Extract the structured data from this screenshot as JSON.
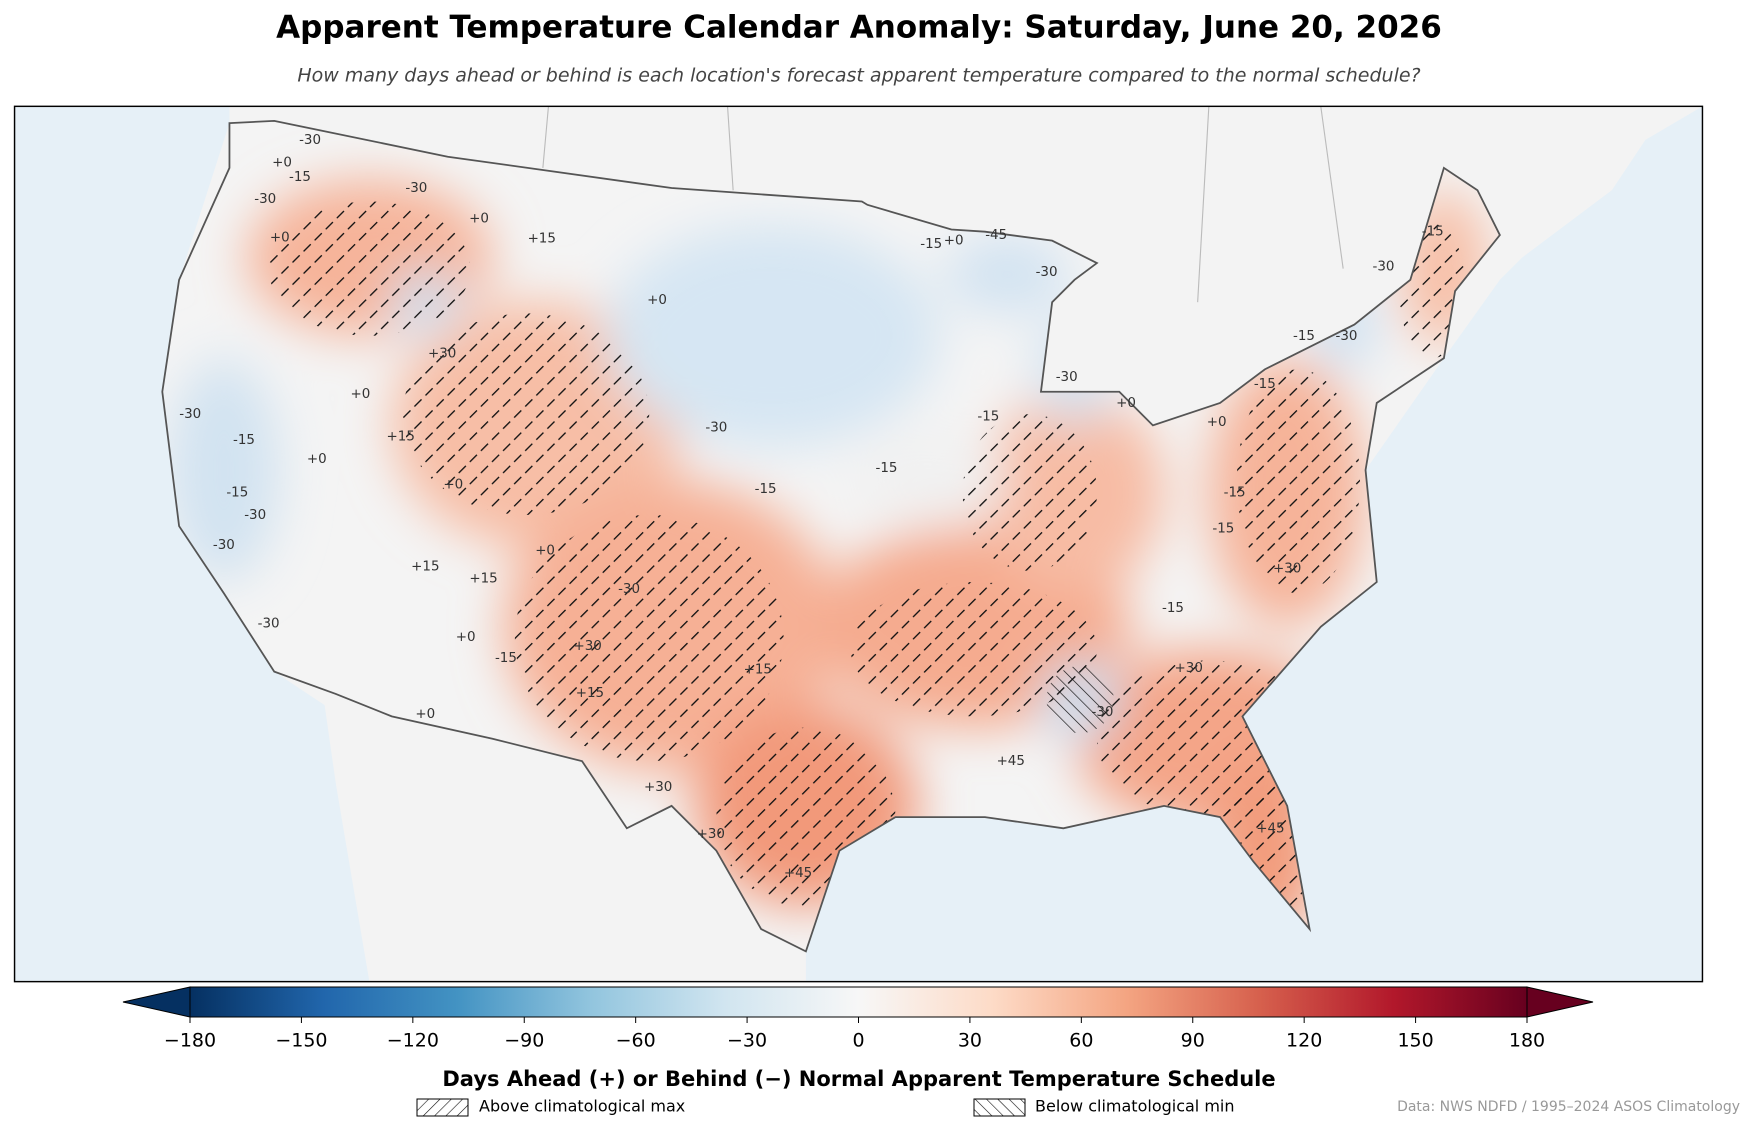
{
  "chart_data": {
    "type": "map",
    "title": "Apparent Temperature Calendar Anomaly: Saturday, June 20, 2026",
    "subtitle": "How many days ahead or behind is each location's forecast apparent temperature compared to the normal schedule?",
    "colorbar_label": "Days Ahead (+) or Behind (−) Normal Apparent Temperature Schedule",
    "clim": [
      -180,
      180
    ],
    "cticks": [
      {
        "value": -180,
        "label": "−180"
      },
      {
        "value": -150,
        "label": "−150"
      },
      {
        "value": -120,
        "label": "−120"
      },
      {
        "value": -90,
        "label": "−90"
      },
      {
        "value": -60,
        "label": "−60"
      },
      {
        "value": -30,
        "label": "−30"
      },
      0,
      30,
      60,
      90,
      120,
      150,
      180
    ],
    "colors": [
      "#053061",
      "#2166ac",
      "#4393c3",
      "#92c5de",
      "#d1e5f0",
      "#f7f7f7",
      "#fddbc7",
      "#f4a582",
      "#d6604d",
      "#b2182b",
      "#67001f"
    ],
    "contour_labels": [
      "-30",
      "+0",
      "-15",
      "-30",
      "+0",
      "-30",
      "+0",
      "+15",
      "-15",
      "+0",
      "-45",
      "-30",
      "+0",
      "+30",
      "+0",
      "-30",
      "-15",
      "+15",
      "+0",
      "+0",
      "-15",
      "-30",
      "-30",
      "-30",
      "-15",
      "-15",
      "-15",
      "+0",
      "+0",
      "-15",
      "-30",
      "-15",
      "-15",
      "-30",
      "-30",
      "-15",
      "-15",
      "+30",
      "-15",
      "+15",
      "+15",
      "+0",
      "-30",
      "+30",
      "+15",
      "-15",
      "+0",
      "+0",
      "-30",
      "+15",
      "+30",
      "+30",
      "+45",
      "-30",
      "+30",
      "+45",
      "+45"
    ],
    "legend": [
      {
        "name": "Above climatological max"
      },
      {
        "name": "Below climatological min"
      }
    ],
    "source": "Data: NWS NDFD / 1995–2024 ASOS Climatology"
  }
}
